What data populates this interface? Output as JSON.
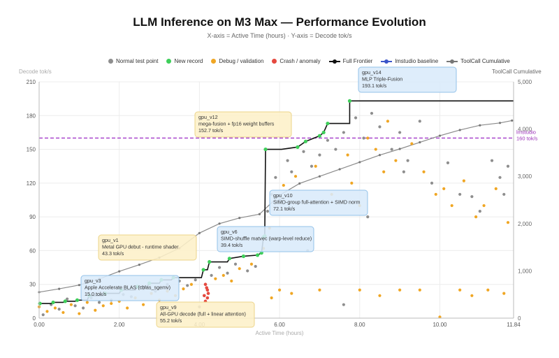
{
  "chart_data": {
    "type": "scatter",
    "title": "LLM Inference on M3 Max — Performance Evolution",
    "subtitle": "X-axis = Active Time (hours) · Y-axis = Decode tok/s",
    "xlabel": "Active Time (hours)",
    "ylabel": "Decode tok/s",
    "y2label": "ToolCall Cumulative",
    "xlim": [
      0,
      11.84
    ],
    "ylim": [
      0,
      210
    ],
    "y2lim": [
      0,
      5000
    ],
    "xticks": [
      "0.00",
      "2.00",
      "4.00",
      "6.00",
      "8.00",
      "10.00",
      "11.84"
    ],
    "xtick_values": [
      0,
      2,
      4,
      6,
      8,
      10,
      11.84
    ],
    "yticks": [
      0,
      30,
      60,
      90,
      120,
      150,
      180,
      210
    ],
    "y2ticks": [
      {
        "value": 0,
        "label": "0"
      },
      {
        "value": 1000,
        "label": "1,000"
      },
      {
        "value": 2000,
        "label": "2,000"
      },
      {
        "value": 3000,
        "label": "3,000"
      },
      {
        "value": 4000,
        "label": "4,000"
      },
      {
        "value": 5000,
        "label": "5,000"
      }
    ],
    "grid": true,
    "legend_position": "top",
    "legend": [
      {
        "name": "Normal test point",
        "kind": "dot",
        "color": "#8e8e8e"
      },
      {
        "name": "New record",
        "kind": "dot",
        "color": "#3ecf5a"
      },
      {
        "name": "Debug / validation",
        "kind": "dot",
        "color": "#f0a623"
      },
      {
        "name": "Crash / anomaly",
        "kind": "dot",
        "color": "#e5493f"
      },
      {
        "name": "Full Frontier",
        "kind": "line",
        "color": "#111111"
      },
      {
        "name": "lmstudio baseline",
        "kind": "line",
        "color": "#3b55c9"
      },
      {
        "name": "ToolCall Cumulative",
        "kind": "line",
        "color": "#777777"
      }
    ],
    "reference_line": {
      "label_lines": [
        "lmstudio",
        "160 tok/s"
      ],
      "y": 160,
      "color": "#a238c9"
    },
    "frontier": [
      [
        0,
        13
      ],
      [
        0.3,
        13
      ],
      [
        0.35,
        14
      ],
      [
        0.6,
        14
      ],
      [
        0.65,
        15
      ],
      [
        0.9,
        15
      ],
      [
        0.95,
        16
      ],
      [
        1.2,
        16
      ],
      [
        1.25,
        20
      ],
      [
        1.6,
        20
      ],
      [
        1.65,
        22
      ],
      [
        2.0,
        22
      ],
      [
        2.05,
        25
      ],
      [
        2.4,
        25
      ],
      [
        2.45,
        28
      ],
      [
        2.7,
        28
      ],
      [
        2.75,
        31
      ],
      [
        3.0,
        31
      ],
      [
        3.05,
        34
      ],
      [
        3.3,
        34
      ],
      [
        3.35,
        36
      ],
      [
        4.05,
        36
      ],
      [
        4.1,
        43
      ],
      [
        4.2,
        43
      ],
      [
        4.25,
        50
      ],
      [
        4.7,
        50
      ],
      [
        4.75,
        53
      ],
      [
        5.1,
        55
      ],
      [
        5.45,
        56
      ],
      [
        5.55,
        58
      ],
      [
        5.6,
        72
      ],
      [
        5.63,
        73
      ],
      [
        5.65,
        150
      ],
      [
        6.05,
        150
      ],
      [
        6.45,
        152
      ],
      [
        6.65,
        157
      ],
      [
        7.0,
        162
      ],
      [
        7.1,
        165
      ],
      [
        7.2,
        173
      ],
      [
        7.75,
        173
      ],
      [
        7.75,
        193
      ],
      [
        11.84,
        193
      ]
    ],
    "new_records": [
      [
        0.02,
        13
      ],
      [
        0.35,
        14
      ],
      [
        0.65,
        15
      ],
      [
        0.95,
        16
      ],
      [
        1.25,
        20
      ],
      [
        1.65,
        22
      ],
      [
        2.05,
        25
      ],
      [
        2.45,
        28
      ],
      [
        2.75,
        31
      ],
      [
        3.05,
        34
      ],
      [
        3.35,
        36
      ],
      [
        4.1,
        43
      ],
      [
        4.25,
        50
      ],
      [
        4.75,
        53
      ],
      [
        5.1,
        55
      ],
      [
        5.45,
        56
      ],
      [
        5.55,
        58
      ],
      [
        5.6,
        72
      ],
      [
        5.63,
        73
      ],
      [
        5.65,
        150
      ],
      [
        6.45,
        152
      ],
      [
        6.65,
        157
      ],
      [
        7.0,
        162
      ],
      [
        7.1,
        165
      ],
      [
        7.2,
        173
      ],
      [
        7.75,
        193
      ]
    ],
    "crashes": [
      [
        4.15,
        30
      ],
      [
        4.18,
        27
      ],
      [
        4.2,
        25
      ],
      [
        4.22,
        22
      ],
      [
        4.12,
        20
      ],
      [
        4.2,
        18
      ],
      [
        4.15,
        15
      ]
    ],
    "toolcall_cumulative": [
      [
        0,
        550
      ],
      [
        0.5,
        620
      ],
      [
        1.0,
        700
      ],
      [
        1.5,
        830
      ],
      [
        2.0,
        990
      ],
      [
        2.5,
        1130
      ],
      [
        3.0,
        1280
      ],
      [
        3.5,
        1480
      ],
      [
        4.0,
        1800
      ],
      [
        4.5,
        2000
      ],
      [
        5.0,
        2120
      ],
      [
        5.5,
        2200
      ],
      [
        6.0,
        2600
      ],
      [
        6.5,
        2850
      ],
      [
        7.0,
        3000
      ],
      [
        7.5,
        3150
      ],
      [
        8.0,
        3300
      ],
      [
        8.5,
        3450
      ],
      [
        9.0,
        3580
      ],
      [
        9.5,
        3720
      ],
      [
        10.0,
        3860
      ],
      [
        10.5,
        3980
      ],
      [
        11.0,
        4080
      ],
      [
        11.5,
        4130
      ],
      [
        11.8,
        4180
      ]
    ],
    "normal_points": [
      [
        0.1,
        3
      ],
      [
        0.3,
        12
      ],
      [
        0.5,
        8
      ],
      [
        0.7,
        17
      ],
      [
        0.9,
        11
      ],
      [
        1.1,
        9
      ],
      [
        1.3,
        18
      ],
      [
        1.5,
        14
      ],
      [
        1.8,
        16
      ],
      [
        2.1,
        21
      ],
      [
        2.3,
        19
      ],
      [
        2.6,
        26
      ],
      [
        2.9,
        24
      ],
      [
        3.2,
        30
      ],
      [
        3.5,
        33
      ],
      [
        3.7,
        29
      ],
      [
        3.9,
        34
      ],
      [
        4.3,
        38
      ],
      [
        4.5,
        45
      ],
      [
        4.7,
        40
      ],
      [
        4.9,
        48
      ],
      [
        5.2,
        42
      ],
      [
        5.4,
        46
      ],
      [
        5.7,
        95
      ],
      [
        5.8,
        110
      ],
      [
        5.9,
        125
      ],
      [
        6.0,
        105
      ],
      [
        6.2,
        140
      ],
      [
        6.3,
        130
      ],
      [
        6.6,
        148
      ],
      [
        6.8,
        135
      ],
      [
        7.0,
        145
      ],
      [
        7.2,
        158
      ],
      [
        7.4,
        150
      ],
      [
        7.6,
        165
      ],
      [
        7.9,
        178
      ],
      [
        8.1,
        160
      ],
      [
        8.3,
        182
      ],
      [
        8.5,
        170
      ],
      [
        8.8,
        150
      ],
      [
        9.0,
        165
      ],
      [
        9.2,
        140
      ],
      [
        9.5,
        175
      ],
      [
        9.8,
        120
      ],
      [
        10.2,
        138
      ],
      [
        10.5,
        110
      ],
      [
        10.8,
        108
      ],
      [
        11.0,
        95
      ],
      [
        11.3,
        140
      ],
      [
        11.5,
        125
      ],
      [
        11.6,
        110
      ],
      [
        11.7,
        135
      ],
      [
        4.0,
        10
      ],
      [
        6.7,
        60
      ],
      [
        7.6,
        12
      ],
      [
        8.2,
        90
      ],
      [
        9.1,
        130
      ]
    ],
    "debug_points": [
      [
        0.0,
        10
      ],
      [
        0.2,
        6
      ],
      [
        0.4,
        9
      ],
      [
        0.6,
        5
      ],
      [
        0.8,
        12
      ],
      [
        1.0,
        4
      ],
      [
        1.2,
        14
      ],
      [
        1.4,
        7
      ],
      [
        1.6,
        11
      ],
      [
        1.8,
        13
      ],
      [
        2.0,
        15
      ],
      [
        2.2,
        9
      ],
      [
        2.4,
        18
      ],
      [
        2.6,
        12
      ],
      [
        2.8,
        22
      ],
      [
        3.0,
        16
      ],
      [
        3.2,
        24
      ],
      [
        3.4,
        20
      ],
      [
        3.6,
        26
      ],
      [
        3.8,
        30
      ],
      [
        4.4,
        35
      ],
      [
        4.6,
        38
      ],
      [
        4.8,
        33
      ],
      [
        5.0,
        44
      ],
      [
        5.3,
        48
      ],
      [
        5.6,
        62
      ],
      [
        5.75,
        80
      ],
      [
        6.1,
        118
      ],
      [
        6.4,
        126
      ],
      [
        6.9,
        135
      ],
      [
        7.3,
        110
      ],
      [
        7.7,
        145
      ],
      [
        7.8,
        120
      ],
      [
        8.0,
        100
      ],
      [
        8.2,
        160
      ],
      [
        8.4,
        150
      ],
      [
        8.6,
        130
      ],
      [
        8.7,
        175
      ],
      [
        8.9,
        140
      ],
      [
        9.3,
        155
      ],
      [
        9.6,
        130
      ],
      [
        9.9,
        110
      ],
      [
        10.1,
        115
      ],
      [
        10.3,
        100
      ],
      [
        10.6,
        122
      ],
      [
        10.9,
        90
      ],
      [
        11.1,
        100
      ],
      [
        11.4,
        115
      ],
      [
        11.7,
        85
      ],
      [
        6.0,
        25
      ],
      [
        7.0,
        25
      ],
      [
        8.0,
        25
      ],
      [
        9.0,
        25
      ],
      [
        9.5,
        25
      ],
      [
        10.5,
        25
      ],
      [
        11.2,
        25
      ],
      [
        5.8,
        18
      ],
      [
        6.3,
        22
      ],
      [
        8.5,
        20
      ],
      [
        10.8,
        20
      ],
      [
        11.6,
        22
      ],
      [
        10.0,
        1
      ]
    ],
    "annotations": [
      {
        "lines": [
          "gpu_v14",
          "MLP Triple-Fusion",
          "193.1 tok/s"
        ],
        "style": "blue"
      },
      {
        "lines": [
          "gpu_v12",
          "mega-fusion + fp16 weight buffers",
          "152.7 tok/s"
        ],
        "style": "yellow"
      },
      {
        "lines": [
          "gpu_v10",
          "SIMD-group full-attention + SIMD norm",
          "72.1 tok/s"
        ],
        "style": "blue"
      },
      {
        "lines": [
          "gpu_v6",
          "SIMD-shuffle matvec (warp-level reduce)",
          "39.4 tok/s"
        ],
        "style": "blue"
      },
      {
        "lines": [
          "gpu_v1",
          "Metal GPU debut - runtime shader",
          "43.3 tok/s"
        ],
        "style": "yellow"
      },
      {
        "lines": [
          "gpu_v3",
          "Apple Accelerate BLAS (cblas_sgemv)",
          "15.0 tok/s"
        ],
        "style": "blue"
      },
      {
        "lines": [
          "gpu_v9",
          "All-GPU decode (full + linear attention)",
          "55.2 tok/s"
        ],
        "style": "yellow"
      }
    ]
  }
}
